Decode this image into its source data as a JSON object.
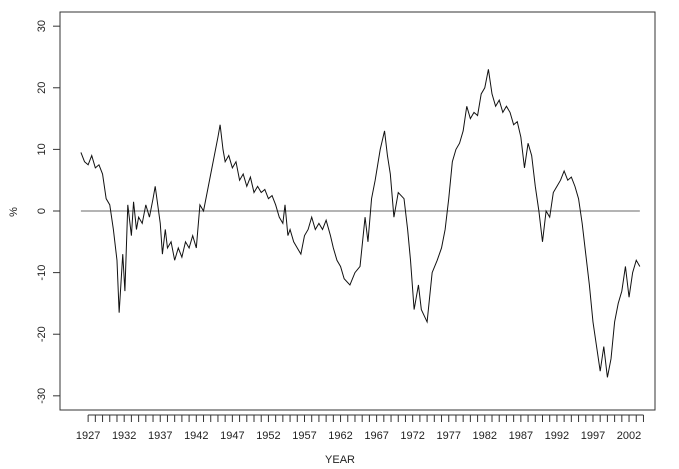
{
  "chart_data": {
    "type": "line",
    "xlabel": "YEAR",
    "ylabel": "%",
    "x": [
      1926,
      1926.5,
      1927,
      1927.5,
      1928,
      1928.5,
      1929,
      1929.5,
      1930,
      1930.5,
      1931,
      1931.3,
      1931.8,
      1932.1,
      1932.5,
      1933,
      1933.3,
      1933.7,
      1934,
      1934.5,
      1935,
      1935.5,
      1936,
      1936.3,
      1937,
      1937.3,
      1937.7,
      1938,
      1938.5,
      1939,
      1939.5,
      1940,
      1940.5,
      1941,
      1941.5,
      1942,
      1942.5,
      1943,
      1943.5,
      1944,
      1944.5,
      1945,
      1945.3,
      1945.7,
      1946,
      1946.5,
      1947,
      1947.5,
      1948,
      1948.5,
      1949,
      1949.5,
      1950,
      1950.5,
      1951,
      1951.5,
      1952,
      1952.5,
      1953,
      1953.5,
      1954,
      1954.3,
      1954.7,
      1955,
      1955.5,
      1956,
      1956.5,
      1957,
      1957.5,
      1958,
      1958.5,
      1959,
      1959.5,
      1960,
      1960.6,
      1961,
      1961.5,
      1962,
      1962.5,
      1963.3,
      1964,
      1964.7,
      1965.4,
      1965.8,
      1966.3,
      1966.8,
      1967.5,
      1968.1,
      1968.5,
      1968.9,
      1969.4,
      1970,
      1970.8,
      1971.3,
      1971.7,
      1972.2,
      1972.8,
      1973.2,
      1974,
      1974.7,
      1975.4,
      1976,
      1976.5,
      1977,
      1977.5,
      1978,
      1978.5,
      1979,
      1979.5,
      1980,
      1980.5,
      1981,
      1981.5,
      1982,
      1982.5,
      1983,
      1983.5,
      1984,
      1984.5,
      1985,
      1985.5,
      1986,
      1986.5,
      1987,
      1987.5,
      1988,
      1988.5,
      1989,
      1989.5,
      1990,
      1990.5,
      1991,
      1991.5,
      1992,
      1992.5,
      1993,
      1993.5,
      1994,
      1994.5,
      1995,
      1995.5,
      1996,
      1996.5,
      1997,
      1997.5,
      1998,
      1998.5,
      1999,
      1999.5,
      2000,
      2000.5,
      2001,
      2001.5,
      2002,
      2002.5,
      2003,
      2003.5
    ],
    "values": [
      9.5,
      8,
      7.5,
      9,
      7,
      7.5,
      6,
      2,
      1,
      -3,
      -8,
      -16.5,
      -7,
      -13,
      1,
      -4,
      1.5,
      -3,
      -1,
      -2,
      1,
      -1,
      2,
      4,
      -2,
      -7,
      -3,
      -6,
      -5,
      -8,
      -6,
      -7.5,
      -5,
      -6,
      -4,
      -6,
      1,
      0,
      3,
      6,
      9,
      12,
      14,
      10,
      8,
      9,
      7,
      8,
      5,
      6,
      4,
      5.5,
      3,
      4,
      3,
      3.5,
      2,
      2.5,
      1,
      -1,
      -2,
      1,
      -4,
      -3,
      -5,
      -6,
      -7,
      -4,
      -3,
      -1,
      -3,
      -2,
      -3,
      -1.5,
      -4,
      -6,
      -8,
      -9,
      -11,
      -12,
      -10,
      -9,
      -1,
      -5,
      2,
      5,
      10,
      13,
      9,
      6,
      -1,
      3,
      2,
      -3,
      -8,
      -16,
      -12,
      -16,
      -18,
      -10,
      -8,
      -6,
      -3,
      2,
      8,
      10,
      11,
      13,
      17,
      15,
      16,
      15.5,
      19,
      20,
      23,
      19,
      17,
      18,
      16,
      17,
      16,
      14,
      14.5,
      12,
      7,
      11,
      9,
      4,
      0,
      -5,
      0,
      -1,
      3,
      4,
      5,
      6.5,
      5,
      5.5,
      4,
      2,
      -2,
      -7,
      -12,
      -18,
      -22,
      -26,
      -22,
      -27,
      -24,
      -18,
      -15,
      -13,
      -9,
      -14,
      -10,
      -8,
      -9
    ],
    "color": "#111111",
    "hline": 0,
    "hline_color": "#888888",
    "xlim": [
      1923.1,
      2005.6
    ],
    "ylim": [
      -32.3,
      32.3
    ],
    "xticks": [
      1927,
      1932,
      1937,
      1942,
      1947,
      1952,
      1957,
      1962,
      1967,
      1972,
      1977,
      1982,
      1987,
      1992,
      1997,
      2002
    ],
    "xminorticks": [
      1928,
      1929,
      1930,
      1931,
      1933,
      1934,
      1935,
      1936,
      1938,
      1939,
      1940,
      1941,
      1943,
      1944,
      1945,
      1946,
      1948,
      1949,
      1950,
      1951,
      1953,
      1954,
      1955,
      1956,
      1958,
      1959,
      1960,
      1961,
      1963,
      1964,
      1965,
      1966,
      1968,
      1969,
      1970,
      1971,
      1973,
      1974,
      1975,
      1976,
      1978,
      1979,
      1980,
      1981,
      1983,
      1984,
      1985,
      1986,
      1988,
      1989,
      1990,
      1991,
      1993,
      1994,
      1995,
      1996,
      1998,
      1999,
      2000,
      2001,
      2003,
      2004
    ],
    "yticks": [
      -30,
      -20,
      -10,
      0,
      10,
      20,
      30
    ]
  }
}
